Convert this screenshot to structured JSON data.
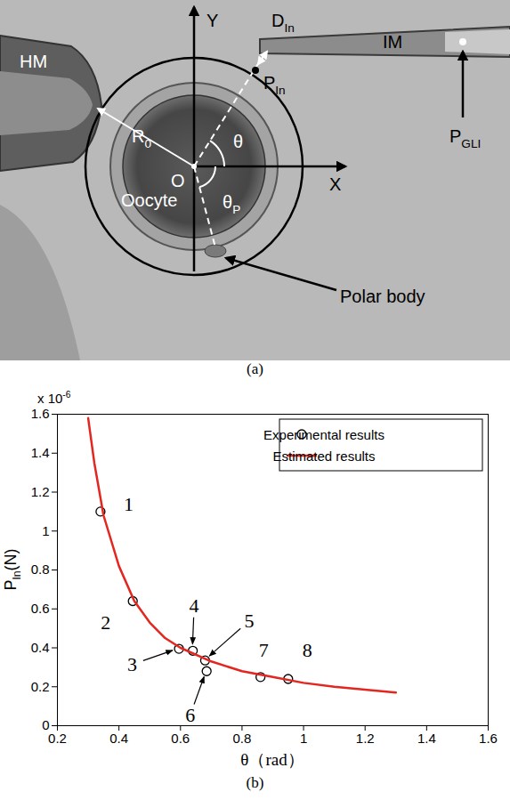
{
  "diagram": {
    "caption": "(a)",
    "labels": {
      "y_axis": {
        "text": "Y"
      },
      "x_axis": {
        "text": "X"
      },
      "d_in": {
        "text": "D",
        "sub": "In"
      },
      "p_in": {
        "text": "P",
        "sub": "In"
      },
      "theta": {
        "text": "θ"
      },
      "theta_p": {
        "text": "θ",
        "sub": "P"
      },
      "r0": {
        "text": "R",
        "sub": "0"
      },
      "origin": {
        "text": "O"
      },
      "oocyte": {
        "text": "Oocyte"
      },
      "hm": {
        "text": "HM"
      },
      "im": {
        "text": "IM"
      },
      "p_gli": {
        "text": "P",
        "sub": "GLI"
      },
      "polar_body": {
        "text": "Polar body"
      }
    }
  },
  "chart_data": {
    "type": "scatter",
    "caption": "(b)",
    "xlabel": "θ（rad）",
    "ylabel": {
      "text": "P",
      "sub": "In",
      "suffix": "(N)"
    },
    "y_multiplier": {
      "text": "x 10",
      "superscript": "-6"
    },
    "xlim": [
      0.2,
      1.6
    ],
    "xticks": [
      0.2,
      0.4,
      0.6,
      0.8,
      1,
      1.2,
      1.4,
      1.6
    ],
    "ylim": [
      0,
      1.6
    ],
    "yticks": [
      0,
      0.2,
      0.4,
      0.6,
      0.8,
      1,
      1.2,
      1.4,
      1.6
    ],
    "grid": false,
    "legend": "top-right",
    "series": [
      {
        "name": "Experimental results",
        "type": "scatter",
        "marker": "circle",
        "color": "#000000",
        "x": [
          0.34,
          0.445,
          0.595,
          0.64,
          0.68,
          0.685,
          0.86,
          0.95
        ],
        "values": [
          1.1,
          0.64,
          0.395,
          0.385,
          0.335,
          0.28,
          0.25,
          0.24
        ],
        "point_labels": [
          "1",
          "2",
          "3",
          "4",
          "5",
          "6",
          "7",
          "8"
        ]
      },
      {
        "name": "Estimated results",
        "type": "line",
        "line_style": "solid",
        "color": "#e3261f",
        "x": [
          0.3,
          0.32,
          0.35,
          0.4,
          0.45,
          0.5,
          0.55,
          0.6,
          0.7,
          0.8,
          0.9,
          1.0,
          1.1,
          1.2,
          1.3
        ],
        "values": [
          1.58,
          1.35,
          1.08,
          0.82,
          0.64,
          0.53,
          0.45,
          0.4,
          0.33,
          0.28,
          0.25,
          0.22,
          0.2,
          0.185,
          0.17
        ]
      }
    ]
  }
}
